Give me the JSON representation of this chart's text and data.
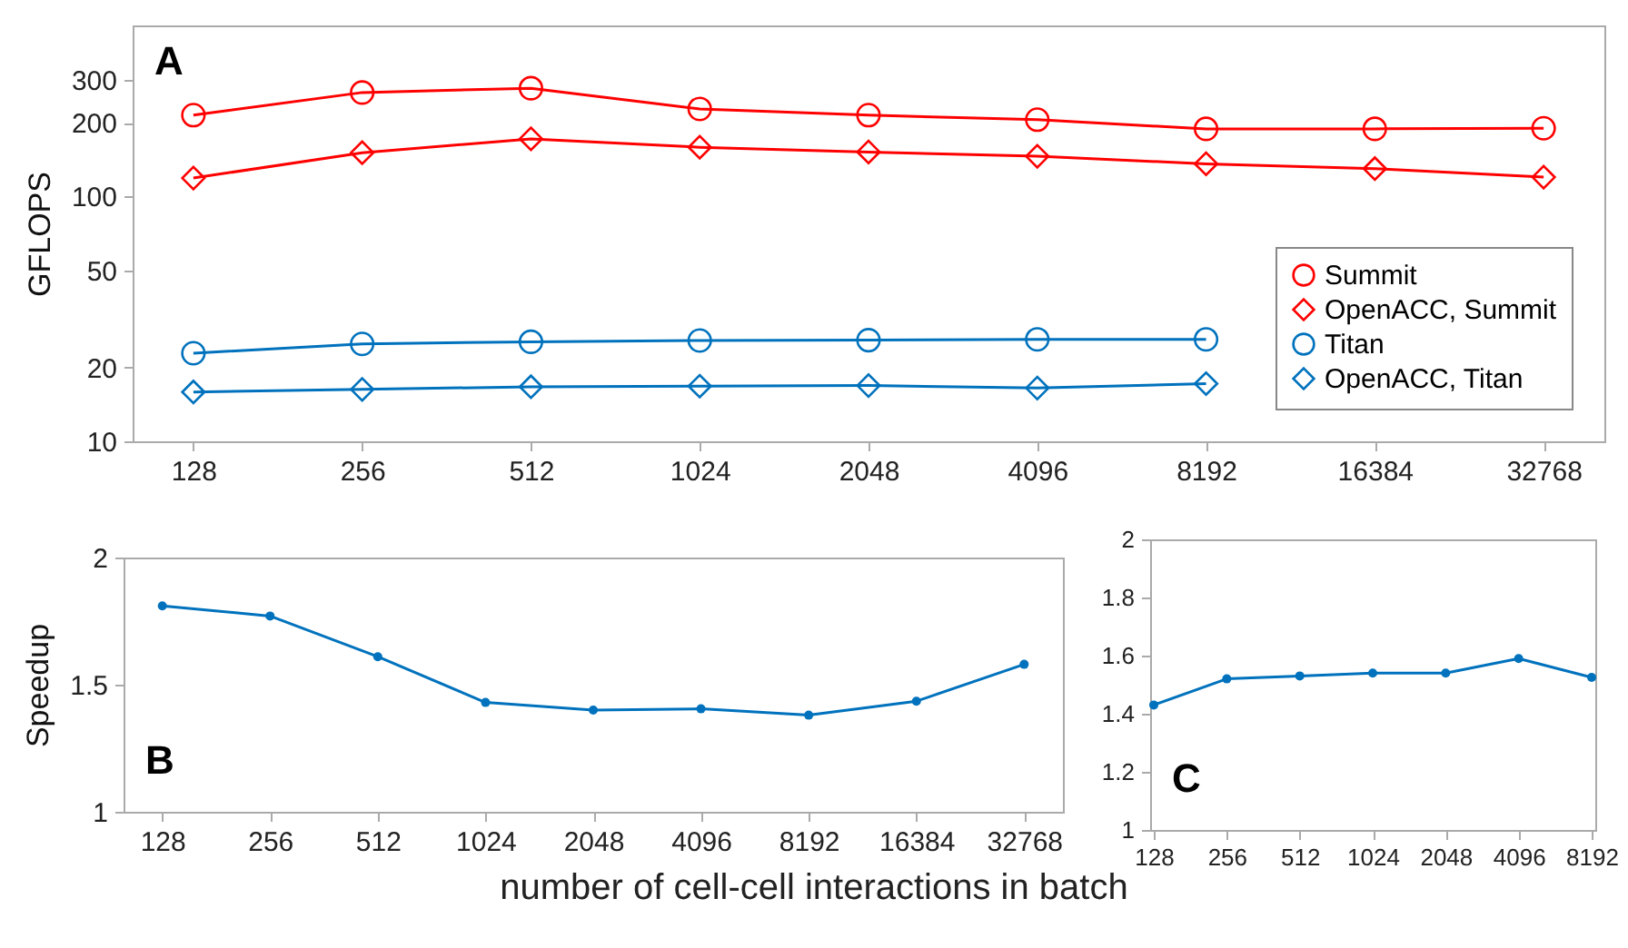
{
  "chart_data": [
    {
      "type": "line",
      "ylabel": "GFLOPS",
      "annotations": [
        "A"
      ],
      "log": true,
      "ylim": [
        10,
        500
      ],
      "yticks": [
        10,
        20,
        50,
        100,
        200,
        300
      ],
      "legend": "bottom right",
      "grid": false,
      "categories": [
        "128",
        "256",
        "512",
        "1024",
        "2048",
        "4096",
        "8192",
        "16384",
        "32768"
      ],
      "series": [
        {
          "name": "Summit",
          "color": "#ff0000",
          "marker": "circle",
          "values": [
            215,
            266,
            277,
            228,
            215,
            206,
            189,
            189,
            190
          ]
        },
        {
          "name": "OpenACC, Summit",
          "color": "#ff0000",
          "marker": "diamond",
          "values": [
            119,
            151,
            172,
            159,
            152,
            146,
            136,
            130,
            120
          ]
        },
        {
          "name": "Titan",
          "color": "#0072bd",
          "marker": "circle",
          "values": [
            22.9,
            25.0,
            25.5,
            25.8,
            25.9,
            26.1,
            26.1,
            null,
            null
          ]
        },
        {
          "name": "OpenACC, Titan",
          "color": "#0072bd",
          "marker": "diamond",
          "values": [
            15.9,
            16.3,
            16.7,
            16.8,
            16.9,
            16.5,
            17.2,
            null,
            null
          ]
        }
      ]
    },
    {
      "type": "line",
      "ylabel": "Speedup",
      "xlabel": "number of cell-cell interactions in batch",
      "annotations": [
        "B"
      ],
      "ylim": [
        1,
        2
      ],
      "yticks": [
        1,
        1.5,
        2
      ],
      "marker": "circle",
      "grid": false,
      "categories": [
        "128",
        "256",
        "512",
        "1024",
        "2048",
        "4096",
        "8192",
        "16384",
        "32768"
      ],
      "series": [
        {
          "color": "#0072bd",
          "values": [
            1.81,
            1.77,
            1.61,
            1.43,
            1.4,
            1.405,
            1.38,
            1.435,
            1.58
          ]
        }
      ]
    },
    {
      "type": "line",
      "annotations": [
        "C"
      ],
      "ylim": [
        1,
        2
      ],
      "yticks": [
        1,
        1.2,
        1.4,
        1.6,
        1.8,
        2
      ],
      "marker": "circle",
      "grid": false,
      "categories": [
        "128",
        "256",
        "512",
        "1024",
        "2048",
        "4096",
        "8192"
      ],
      "series": [
        {
          "color": "#0072bd",
          "values": [
            1.43,
            1.52,
            1.53,
            1.54,
            1.54,
            1.59,
            1.525
          ]
        }
      ]
    }
  ]
}
